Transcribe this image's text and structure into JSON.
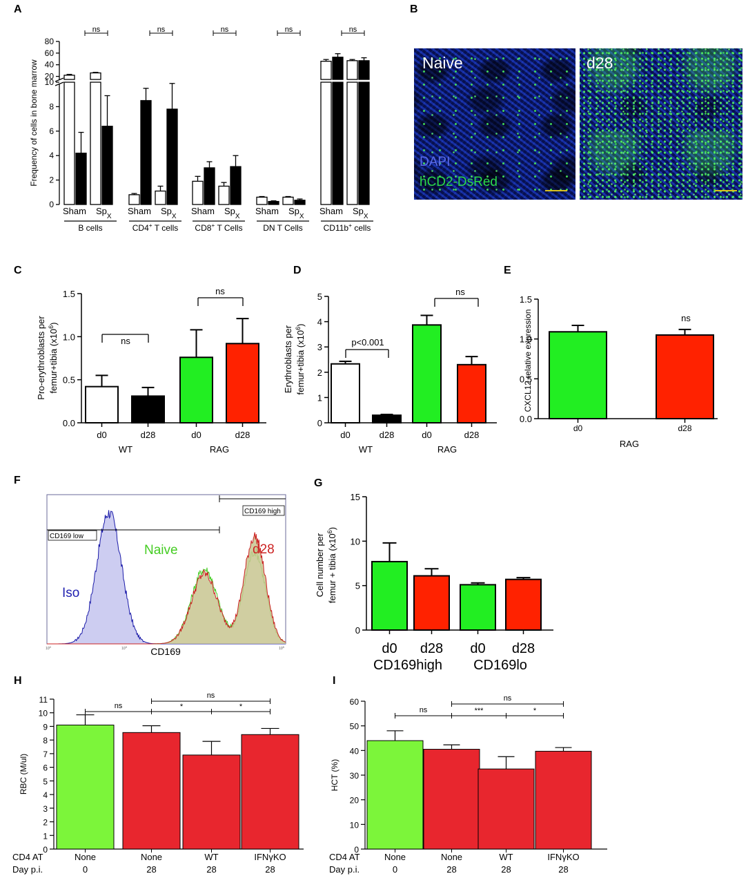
{
  "panel_letters": [
    "A",
    "B",
    "C",
    "D",
    "E",
    "F",
    "G",
    "H",
    "I"
  ],
  "chart_data": [
    {
      "panel": "A",
      "type": "bar",
      "ylabel": "Frequency of cells in bone marrow",
      "lower_ylim": [
        0,
        10
      ],
      "upper_ylim": [
        10,
        80
      ],
      "lower_ticks": [
        "0",
        "2",
        "4",
        "6",
        "8",
        "10"
      ],
      "upper_ticks": [
        "20",
        "40",
        "60",
        "80"
      ],
      "subgroup_labels": [
        "Sham",
        "Sp",
        "X"
      ],
      "groups": [
        {
          "name": "B cells",
          "sup": "",
          "suffix": "",
          "bars": [
            {
              "v": 22,
              "e": 1.5,
              "fill": "white"
            },
            {
              "v": 4.2,
              "e": 1.7,
              "fill": "black"
            },
            {
              "v": 26,
              "e": 1.0,
              "fill": "white"
            },
            {
              "v": 6.4,
              "e": 2.5,
              "fill": "black"
            }
          ]
        },
        {
          "name": "CD4",
          "sup": "+",
          "suffix": " T cells",
          "bars": [
            {
              "v": 0.8,
              "e": 0.1,
              "fill": "white"
            },
            {
              "v": 8.5,
              "e": 1.0,
              "fill": "black"
            },
            {
              "v": 1.1,
              "e": 0.4,
              "fill": "white"
            },
            {
              "v": 7.8,
              "e": 2.1,
              "fill": "black"
            }
          ]
        },
        {
          "name": "CD8",
          "sup": "+",
          "suffix": " T Cells",
          "bars": [
            {
              "v": 1.9,
              "e": 0.4,
              "fill": "white"
            },
            {
              "v": 3.0,
              "e": 0.5,
              "fill": "black"
            },
            {
              "v": 1.5,
              "e": 0.3,
              "fill": "white"
            },
            {
              "v": 3.1,
              "e": 0.9,
              "fill": "black"
            }
          ]
        },
        {
          "name": "DN T Cells",
          "sup": "",
          "suffix": "",
          "bars": [
            {
              "v": 0.6,
              "e": 0.05,
              "fill": "white"
            },
            {
              "v": 0.25,
              "e": 0.05,
              "fill": "black"
            },
            {
              "v": 0.6,
              "e": 0.05,
              "fill": "white"
            },
            {
              "v": 0.35,
              "e": 0.1,
              "fill": "black"
            }
          ]
        },
        {
          "name": "CD11b",
          "sup": "+",
          "suffix": " cells",
          "bars": [
            {
              "v": 46,
              "e": 3,
              "fill": "white"
            },
            {
              "v": 53,
              "e": 6,
              "fill": "black"
            },
            {
              "v": 47,
              "e": 2,
              "fill": "white"
            },
            {
              "v": 47,
              "e": 5,
              "fill": "black"
            }
          ]
        }
      ],
      "annotations": [
        "ns",
        "ns",
        "ns",
        "ns",
        "ns"
      ]
    },
    {
      "panel": "C",
      "type": "bar",
      "ylabel": [
        "Pro-erythroblasts per",
        "femur+tibia (x10",
        "6",
        ")"
      ],
      "ylim": [
        0,
        1.5
      ],
      "yticks": [
        "0.0",
        "0.5",
        "1.0",
        "1.5"
      ],
      "categories": [
        "d0",
        "d28",
        "d0",
        "d28"
      ],
      "values": [
        0.42,
        0.31,
        0.76,
        0.92
      ],
      "errors": [
        0.13,
        0.1,
        0.32,
        0.29
      ],
      "colors": [
        "#ffffff",
        "#000000",
        "#22ee22",
        "#ff2200"
      ],
      "groups": [
        "WT",
        "RAG"
      ],
      "annotations": [
        "ns",
        "ns"
      ]
    },
    {
      "panel": "D",
      "type": "bar",
      "ylabel": [
        "Erythroblasts per",
        "femur+tibia (x10",
        "6",
        ")"
      ],
      "ylim": [
        0,
        5
      ],
      "yticks": [
        "0",
        "1",
        "2",
        "3",
        "4",
        "5"
      ],
      "categories": [
        "d0",
        "d28",
        "d0",
        "d28"
      ],
      "values": [
        2.33,
        0.3,
        3.87,
        2.3
      ],
      "errors": [
        0.1,
        0.03,
        0.38,
        0.32
      ],
      "colors": [
        "#ffffff",
        "#000000",
        "#22ee22",
        "#ff2200"
      ],
      "groups": [
        "WT",
        "RAG"
      ],
      "annotations": [
        "p<0.001",
        "ns"
      ]
    },
    {
      "panel": "E",
      "type": "bar",
      "ylabel": "CXCL12 relative expression",
      "ylim": [
        0,
        1.5
      ],
      "yticks": [
        "0.0",
        "0.5",
        "1.0",
        "1.5"
      ],
      "categories": [
        "d0",
        "d28"
      ],
      "values": [
        1.09,
        1.05
      ],
      "errors": [
        0.08,
        0.07
      ],
      "colors": [
        "#22ee22",
        "#ff2200"
      ],
      "xlabel": "RAG",
      "annotations": [
        "ns"
      ]
    },
    {
      "panel": "F",
      "type": "histogram",
      "xlabel": "CD169",
      "tick_labels": [
        "10",
        "0",
        "10",
        "3",
        "10",
        "5"
      ],
      "series": [
        {
          "name": "Iso",
          "color": "#1a1aa8",
          "fill": "#c4c4ee",
          "peaks": [
            {
              "mu": 0.26,
              "s": 0.052,
              "h": 0.88
            }
          ]
        },
        {
          "name": "Naive",
          "color": "#44cc22",
          "fill": "none",
          "peaks": [
            {
              "mu": 0.66,
              "s": 0.055,
              "h": 0.5
            },
            {
              "mu": 0.87,
              "s": 0.045,
              "h": 0.62
            }
          ]
        },
        {
          "name": "d28",
          "color": "#cc2222",
          "fill": "#c8c690",
          "peaks": [
            {
              "mu": 0.66,
              "s": 0.055,
              "h": 0.47
            },
            {
              "mu": 0.87,
              "s": 0.045,
              "h": 0.72
            }
          ]
        }
      ],
      "gates": [
        "CD169 low",
        "CD169 high"
      ]
    },
    {
      "panel": "G",
      "type": "bar",
      "ylabel": [
        "Cell number per",
        "femur + tibia (x10",
        "6",
        ")"
      ],
      "ylim": [
        0,
        15
      ],
      "yticks": [
        "0",
        "5",
        "10",
        "15"
      ],
      "categories": [
        "d0",
        "d28",
        "d0",
        "d28"
      ],
      "values": [
        7.7,
        6.1,
        5.1,
        5.7
      ],
      "errors": [
        2.1,
        0.8,
        0.2,
        0.2
      ],
      "colors": [
        "#22ee22",
        "#ff2200",
        "#22ee22",
        "#ff2200"
      ],
      "groups": [
        "CD169high",
        "CD169lo"
      ]
    },
    {
      "panel": "H",
      "type": "bar",
      "ylabel": "RBC (M/ul)",
      "ylim": [
        0,
        11
      ],
      "yticks": [
        "0",
        "1",
        "2",
        "3",
        "4",
        "5",
        "6",
        "7",
        "8",
        "9",
        "10",
        "11"
      ],
      "values": [
        9.1,
        8.55,
        6.9,
        8.4
      ],
      "errors": [
        0.75,
        0.5,
        1.0,
        0.45
      ],
      "colors": [
        "#7cf53a",
        "#e8262e",
        "#e8262e",
        "#e8262e"
      ],
      "row_labels": [
        "CD4 AT",
        "Day p.i."
      ],
      "cd4_at": [
        "None",
        "None",
        "WT",
        "IFNγKO"
      ],
      "day": [
        "0",
        "28",
        "28",
        "28"
      ],
      "annotations": [
        "ns",
        "*",
        "*",
        "ns"
      ]
    },
    {
      "panel": "I",
      "type": "bar",
      "ylabel": "HCT (%)",
      "ylim": [
        0,
        60
      ],
      "yticks": [
        "0",
        "10",
        "20",
        "30",
        "40",
        "50",
        "60"
      ],
      "values": [
        44,
        40.5,
        32.5,
        39.7
      ],
      "errors": [
        4,
        1.8,
        5,
        1.5
      ],
      "colors": [
        "#7cf53a",
        "#e8262e",
        "#e8262e",
        "#e8262e"
      ],
      "row_labels": [
        "CD4 AT",
        "Day p.i."
      ],
      "cd4_at": [
        "None",
        "None",
        "WT",
        "IFNγKO"
      ],
      "day": [
        "0",
        "28",
        "28",
        "28"
      ],
      "annotations": [
        "ns",
        "***",
        "*",
        "ns"
      ]
    }
  ],
  "micrographs": {
    "naive_label": "Naive",
    "d28_label": "d28",
    "stain_dapi": "DAPI",
    "stain_reporter": "hCD2-DsRed",
    "colors": {
      "dapi": "#5b6be8",
      "reporter": "#2bd94a"
    }
  }
}
